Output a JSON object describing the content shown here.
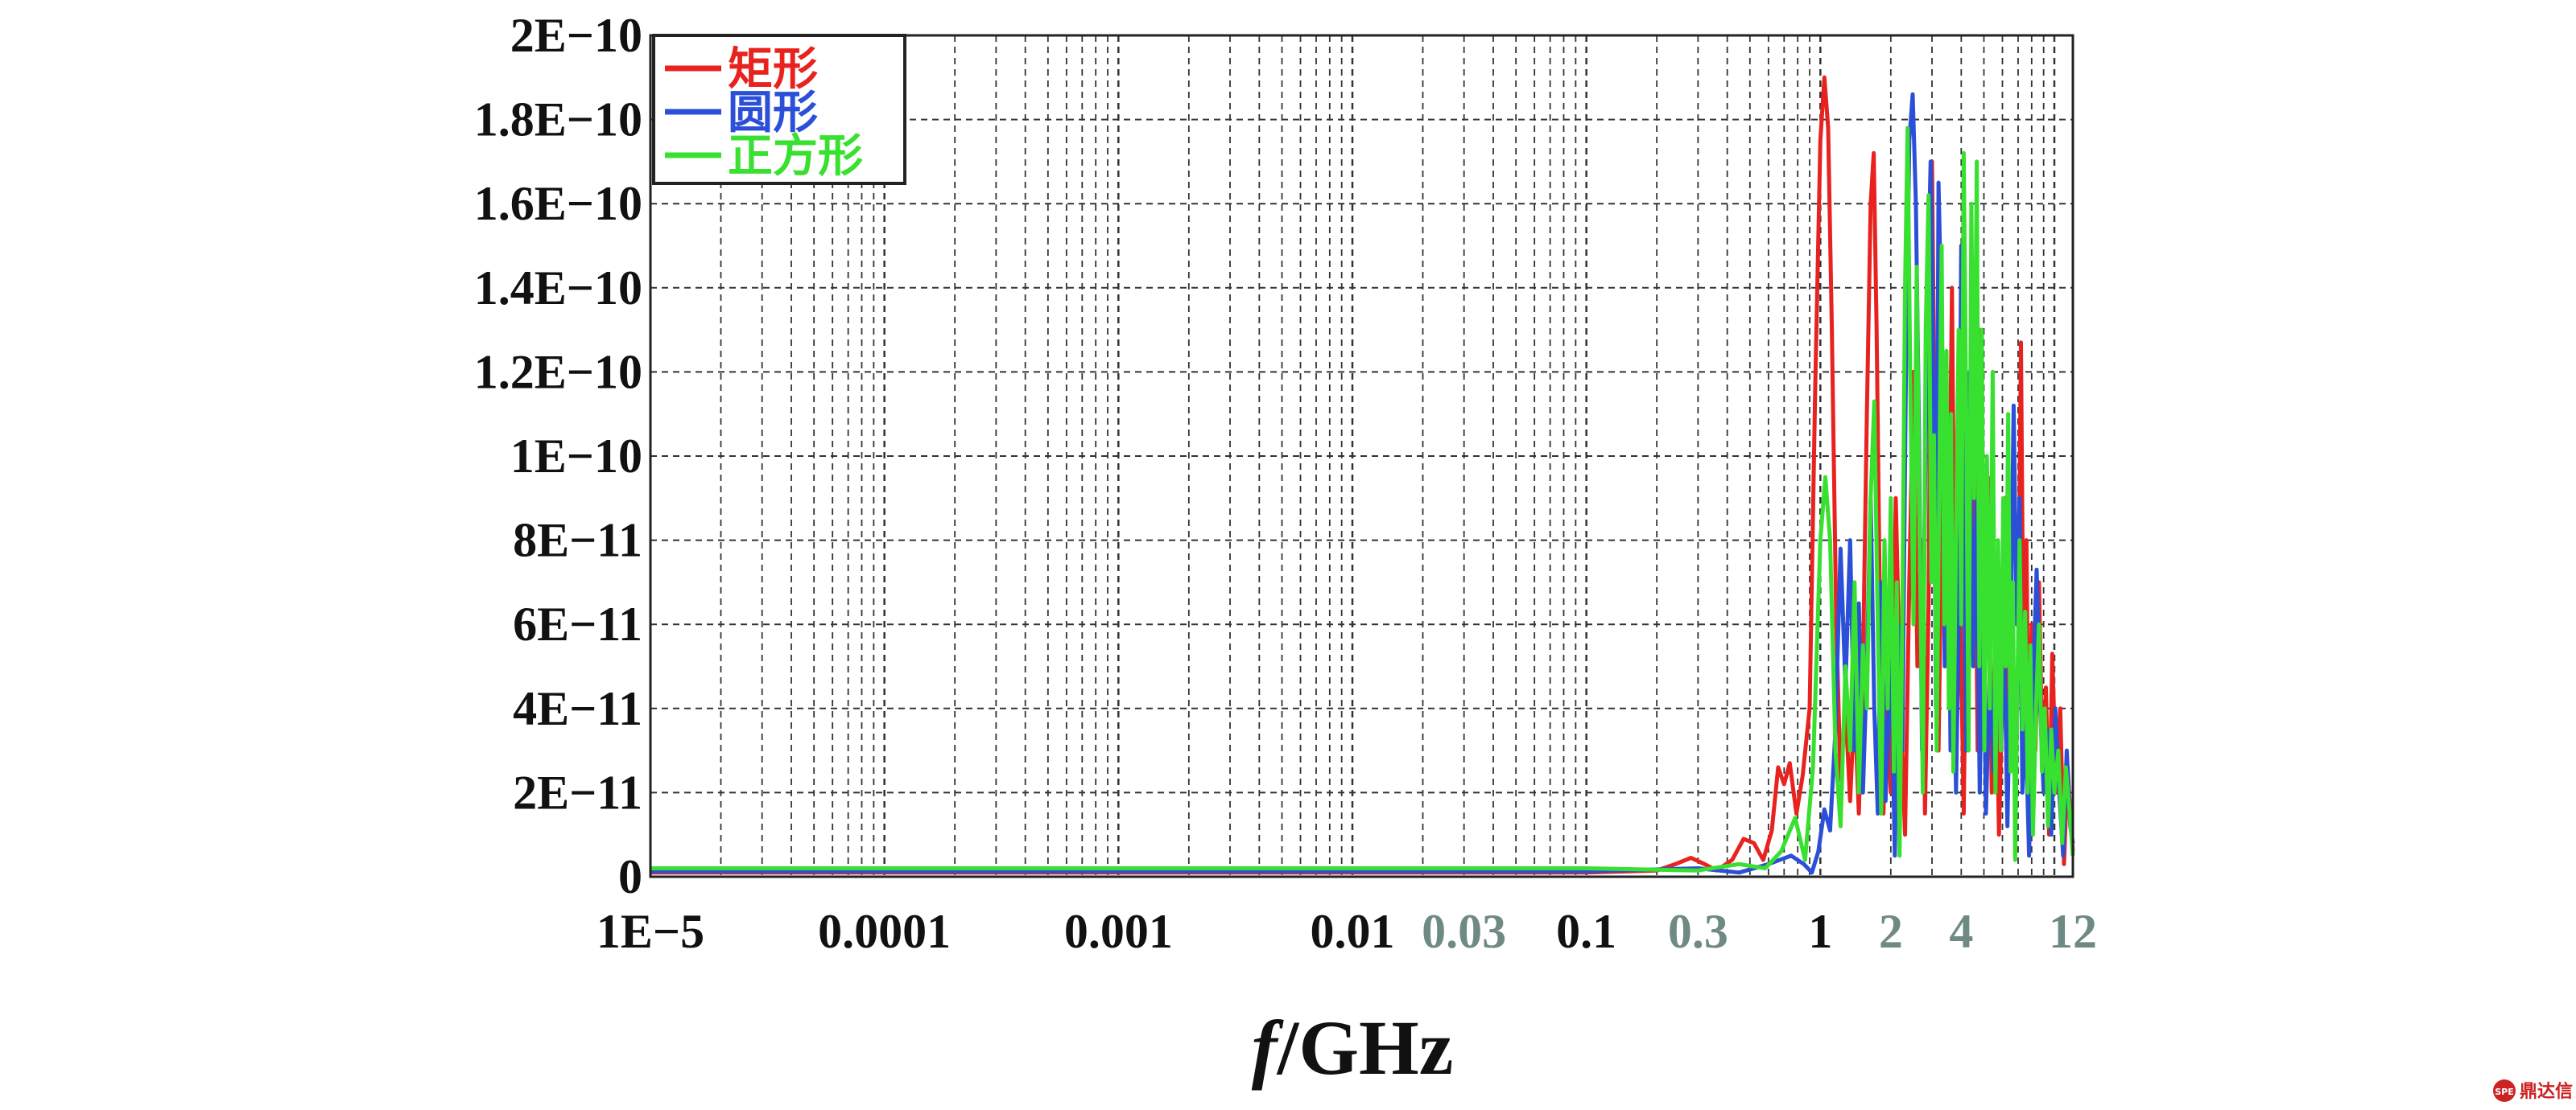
{
  "chart_data": {
    "type": "line",
    "title": "",
    "xlabel_italic": "f",
    "xlabel_rest": "/GHz",
    "ylabel": "",
    "x_scale": "log",
    "xlim": [
      1e-05,
      12
    ],
    "ylim": [
      0,
      2e-10
    ],
    "grid": true,
    "legend_position": "top-left",
    "y_ticks": [
      {
        "value": 0,
        "label": "0"
      },
      {
        "value": 2e-11,
        "label": "2E−11"
      },
      {
        "value": 4e-11,
        "label": "4E−11"
      },
      {
        "value": 6e-11,
        "label": "6E−11"
      },
      {
        "value": 8e-11,
        "label": "8E−11"
      },
      {
        "value": 1e-10,
        "label": "1E−10"
      },
      {
        "value": 1.2e-10,
        "label": "1.2E−10"
      },
      {
        "value": 1.4e-10,
        "label": "1.4E−10"
      },
      {
        "value": 1.6e-10,
        "label": "1.6E−10"
      },
      {
        "value": 1.8e-10,
        "label": "1.8E−10"
      },
      {
        "value": 2e-10,
        "label": "2E−10"
      }
    ],
    "x_ticks": [
      {
        "value": 1e-05,
        "label": "1E−5",
        "color": "#111111"
      },
      {
        "value": 0.0001,
        "label": "0.0001",
        "color": "#111111"
      },
      {
        "value": 0.001,
        "label": "0.001",
        "color": "#111111"
      },
      {
        "value": 0.01,
        "label": "0.01",
        "color": "#111111"
      },
      {
        "value": 0.03,
        "label": "0.03",
        "color": "#6f8a84"
      },
      {
        "value": 0.1,
        "label": "0.1",
        "color": "#111111"
      },
      {
        "value": 0.3,
        "label": "0.3",
        "color": "#6f8a84"
      },
      {
        "value": 1,
        "label": "1",
        "color": "#111111"
      },
      {
        "value": 2,
        "label": "2",
        "color": "#6f8a84"
      },
      {
        "value": 4,
        "label": "4",
        "color": "#6f8a84"
      },
      {
        "value": 12,
        "label": "12",
        "color": "#6f8a84"
      }
    ],
    "series": [
      {
        "name": "矩形",
        "color": "#e8231f",
        "points": [
          [
            1e-05,
            1e-12
          ],
          [
            0.0001,
            1e-12
          ],
          [
            0.001,
            1e-12
          ],
          [
            0.01,
            1e-12
          ],
          [
            0.1,
            1e-12
          ],
          [
            0.2,
            1.5e-12
          ],
          [
            0.24,
            3e-12
          ],
          [
            0.28,
            4.5e-12
          ],
          [
            0.32,
            3e-12
          ],
          [
            0.36,
            1.5e-12
          ],
          [
            0.42,
            4e-12
          ],
          [
            0.47,
            9e-12
          ],
          [
            0.52,
            8e-12
          ],
          [
            0.57,
            4e-12
          ],
          [
            0.62,
            1.1e-11
          ],
          [
            0.66,
            2.6e-11
          ],
          [
            0.7,
            2.2e-11
          ],
          [
            0.74,
            2.7e-11
          ],
          [
            0.79,
            1.5e-11
          ],
          [
            0.84,
            2.4e-11
          ],
          [
            0.9,
            4e-11
          ],
          [
            0.95,
            1.15e-10
          ],
          [
            1.0,
            1.75e-10
          ],
          [
            1.04,
            1.9e-10
          ],
          [
            1.08,
            1.78e-10
          ],
          [
            1.12,
            1.3e-10
          ],
          [
            1.17,
            6e-11
          ],
          [
            1.22,
            2.3e-11
          ],
          [
            1.28,
            4e-11
          ],
          [
            1.34,
            1.8e-11
          ],
          [
            1.4,
            4.2e-11
          ],
          [
            1.46,
            1.5e-11
          ],
          [
            1.52,
            5e-11
          ],
          [
            1.58,
            1.1e-10
          ],
          [
            1.64,
            1.6e-10
          ],
          [
            1.69,
            1.72e-10
          ],
          [
            1.74,
            1.3e-10
          ],
          [
            1.8,
            6e-11
          ],
          [
            1.86,
            1.5e-11
          ],
          [
            1.92,
            4.5e-11
          ],
          [
            2.0,
            2e-11
          ],
          [
            2.1,
            9e-11
          ],
          [
            2.2,
            4e-11
          ],
          [
            2.3,
            1e-11
          ],
          [
            2.4,
            7e-11
          ],
          [
            2.5,
            1.2e-10
          ],
          [
            2.6,
            5e-11
          ],
          [
            2.7,
            8e-11
          ],
          [
            2.8,
            1.5e-11
          ],
          [
            2.9,
            6.5e-11
          ],
          [
            3.0,
            1.7e-10
          ],
          [
            3.1,
            9e-11
          ],
          [
            3.2,
            3e-11
          ],
          [
            3.35,
            1.1e-10
          ],
          [
            3.5,
            5e-11
          ],
          [
            3.65,
            1.4e-10
          ],
          [
            3.8,
            2.5e-11
          ],
          [
            3.95,
            7e-11
          ],
          [
            4.1,
            1.5e-11
          ],
          [
            4.25,
            9e-11
          ],
          [
            4.4,
            6e-11
          ],
          [
            4.55,
            1.1e-10
          ],
          [
            4.7,
            3e-11
          ],
          [
            4.85,
            1.3e-10
          ],
          [
            5.0,
            4e-11
          ],
          [
            5.2,
            9.5e-11
          ],
          [
            5.4,
            2e-11
          ],
          [
            5.6,
            6e-11
          ],
          [
            5.8,
            1e-11
          ],
          [
            6.0,
            4.5e-11
          ],
          [
            6.2,
            9e-11
          ],
          [
            6.4,
            3e-11
          ],
          [
            6.6,
            6e-11
          ],
          [
            6.8,
            2e-11
          ],
          [
            7.0,
            5e-11
          ],
          [
            7.2,
            1.27e-10
          ],
          [
            7.4,
            4e-11
          ],
          [
            7.6,
            8e-11
          ],
          [
            7.8,
            1.5e-11
          ],
          [
            8.0,
            6e-11
          ],
          [
            8.3,
            3e-11
          ],
          [
            8.6,
            7e-11
          ],
          [
            8.9,
            2.5e-11
          ],
          [
            9.2,
            4.5e-11
          ],
          [
            9.5,
            1e-11
          ],
          [
            9.8,
            5.3e-11
          ],
          [
            10.2,
            2e-11
          ],
          [
            10.6,
            4e-11
          ],
          [
            11.0,
            3e-12
          ],
          [
            11.4,
            2.6e-11
          ],
          [
            11.7,
            1.5e-11
          ],
          [
            12.0,
            6e-12
          ]
        ]
      },
      {
        "name": "圆形",
        "color": "#2b4fd8",
        "points": [
          [
            1e-05,
            1.3e-12
          ],
          [
            0.0001,
            1.3e-12
          ],
          [
            0.001,
            1.3e-12
          ],
          [
            0.01,
            1.3e-12
          ],
          [
            0.1,
            1.3e-12
          ],
          [
            0.3,
            2e-12
          ],
          [
            0.45,
            1e-12
          ],
          [
            0.6,
            3e-12
          ],
          [
            0.75,
            5e-12
          ],
          [
            0.85,
            3e-12
          ],
          [
            0.92,
            1e-12
          ],
          [
            0.98,
            6e-12
          ],
          [
            1.04,
            1.6e-11
          ],
          [
            1.1,
            1.1e-11
          ],
          [
            1.16,
            3.5e-11
          ],
          [
            1.22,
            7.8e-11
          ],
          [
            1.28,
            4.5e-11
          ],
          [
            1.34,
            8e-11
          ],
          [
            1.4,
            3e-11
          ],
          [
            1.46,
            6.5e-11
          ],
          [
            1.52,
            2e-11
          ],
          [
            1.58,
            5e-11
          ],
          [
            1.64,
            9e-11
          ],
          [
            1.7,
            4e-11
          ],
          [
            1.76,
            1.5e-11
          ],
          [
            1.82,
            7e-11
          ],
          [
            1.9,
            1.8e-11
          ],
          [
            2.0,
            5.5e-11
          ],
          [
            2.08,
            5e-12
          ],
          [
            2.16,
            6e-11
          ],
          [
            2.24,
            3e-11
          ],
          [
            2.32,
            1.2e-10
          ],
          [
            2.4,
            1.75e-10
          ],
          [
            2.48,
            1.86e-10
          ],
          [
            2.56,
            1.6e-10
          ],
          [
            2.64,
            1.05e-10
          ],
          [
            2.72,
            3e-11
          ],
          [
            2.8,
            9e-11
          ],
          [
            2.88,
            1.4e-10
          ],
          [
            2.96,
            1.7e-10
          ],
          [
            3.04,
            1.2e-10
          ],
          [
            3.12,
            4e-11
          ],
          [
            3.2,
            1.65e-10
          ],
          [
            3.3,
            1.3e-10
          ],
          [
            3.4,
            5e-11
          ],
          [
            3.5,
            1.1e-10
          ],
          [
            3.6,
            3e-11
          ],
          [
            3.7,
            8e-11
          ],
          [
            3.8,
            2e-11
          ],
          [
            3.9,
            6e-11
          ],
          [
            4.0,
            1.5e-10
          ],
          [
            4.1,
            8e-11
          ],
          [
            4.2,
            3e-11
          ],
          [
            4.35,
            1.2e-10
          ],
          [
            4.5,
            5e-11
          ],
          [
            4.65,
            9e-11
          ],
          [
            4.8,
            2e-11
          ],
          [
            4.95,
            7e-11
          ],
          [
            5.1,
            1.5e-11
          ],
          [
            5.3,
            5e-11
          ],
          [
            5.5,
            2.5e-11
          ],
          [
            5.7,
            7.5e-11
          ],
          [
            5.9,
            3e-11
          ],
          [
            6.1,
            6e-11
          ],
          [
            6.3,
            1.2e-11
          ],
          [
            6.5,
            5.5e-11
          ],
          [
            6.7,
            1.12e-10
          ],
          [
            6.9,
            6e-11
          ],
          [
            7.1,
            9e-11
          ],
          [
            7.3,
            2e-11
          ],
          [
            7.5,
            4e-11
          ],
          [
            7.8,
            5e-12
          ],
          [
            8.1,
            4.5e-11
          ],
          [
            8.4,
            7.3e-11
          ],
          [
            8.7,
            4e-11
          ],
          [
            9.0,
            2e-11
          ],
          [
            9.3,
            3.5e-11
          ],
          [
            9.7,
            1e-11
          ],
          [
            10.1,
            4e-11
          ],
          [
            10.5,
            2e-11
          ],
          [
            10.9,
            5e-12
          ],
          [
            11.3,
            3e-11
          ],
          [
            11.7,
            1.2e-11
          ],
          [
            12.0,
            8e-12
          ]
        ]
      },
      {
        "name": "正方形",
        "color": "#38e030",
        "points": [
          [
            1e-05,
            2e-12
          ],
          [
            0.0001,
            2e-12
          ],
          [
            0.001,
            2e-12
          ],
          [
            0.01,
            2e-12
          ],
          [
            0.1,
            2e-12
          ],
          [
            0.3,
            1.5e-12
          ],
          [
            0.45,
            3e-12
          ],
          [
            0.58,
            2e-12
          ],
          [
            0.68,
            6e-12
          ],
          [
            0.78,
            1.4e-11
          ],
          [
            0.86,
            4e-12
          ],
          [
            0.93,
            2.6e-11
          ],
          [
            1.0,
            8e-11
          ],
          [
            1.05,
            9.5e-11
          ],
          [
            1.1,
            8e-11
          ],
          [
            1.16,
            3e-11
          ],
          [
            1.22,
            1.2e-11
          ],
          [
            1.28,
            5e-11
          ],
          [
            1.34,
            3e-11
          ],
          [
            1.4,
            7e-11
          ],
          [
            1.46,
            2e-11
          ],
          [
            1.52,
            5.5e-11
          ],
          [
            1.58,
            4e-11
          ],
          [
            1.64,
            9e-11
          ],
          [
            1.7,
            1.13e-10
          ],
          [
            1.76,
            6e-11
          ],
          [
            1.82,
            1.5e-11
          ],
          [
            1.88,
            8e-11
          ],
          [
            1.94,
            4e-11
          ],
          [
            2.0,
            9e-11
          ],
          [
            2.06,
            2.5e-11
          ],
          [
            2.12,
            7e-11
          ],
          [
            2.18,
            5e-12
          ],
          [
            2.24,
            6e-11
          ],
          [
            2.3,
            1.4e-10
          ],
          [
            2.36,
            1.78e-10
          ],
          [
            2.42,
            1.2e-10
          ],
          [
            2.5,
            6e-11
          ],
          [
            2.58,
            1.45e-10
          ],
          [
            2.66,
            8e-11
          ],
          [
            2.74,
            2e-11
          ],
          [
            2.82,
            1.3e-10
          ],
          [
            2.9,
            1.62e-10
          ],
          [
            2.98,
            7e-11
          ],
          [
            3.06,
            1.05e-10
          ],
          [
            3.14,
            3e-11
          ],
          [
            3.22,
            9e-11
          ],
          [
            3.3,
            1.5e-10
          ],
          [
            3.38,
            6e-11
          ],
          [
            3.46,
            1.25e-10
          ],
          [
            3.54,
            4e-11
          ],
          [
            3.62,
            1.1e-10
          ],
          [
            3.7,
            2.5e-11
          ],
          [
            3.8,
            8e-11
          ],
          [
            3.9,
            1.3e-10
          ],
          [
            4.0,
            6e-11
          ],
          [
            4.1,
            1.72e-10
          ],
          [
            4.2,
            1.1e-10
          ],
          [
            4.3,
            3e-11
          ],
          [
            4.42,
            1.6e-10
          ],
          [
            4.54,
            9e-11
          ],
          [
            4.66,
            1.7e-10
          ],
          [
            4.78,
            5e-11
          ],
          [
            4.9,
            1.3e-10
          ],
          [
            5.02,
            3e-11
          ],
          [
            5.15,
            1e-10
          ],
          [
            5.3,
            4e-11
          ],
          [
            5.45,
            1.2e-10
          ],
          [
            5.6,
            2e-11
          ],
          [
            5.75,
            8e-11
          ],
          [
            5.9,
            3e-11
          ],
          [
            6.05,
            9e-11
          ],
          [
            6.2,
            5e-11
          ],
          [
            6.35,
            1.1e-10
          ],
          [
            6.5,
            2.5e-11
          ],
          [
            6.65,
            7e-11
          ],
          [
            6.8,
            4e-12
          ],
          [
            6.95,
            4.5e-11
          ],
          [
            7.1,
            8e-11
          ],
          [
            7.3,
            3.5e-11
          ],
          [
            7.5,
            6.3e-11
          ],
          [
            7.7,
            2e-11
          ],
          [
            7.9,
            5.5e-11
          ],
          [
            8.1,
            1e-11
          ],
          [
            8.35,
            4e-11
          ],
          [
            8.6,
            6e-11
          ],
          [
            8.85,
            2.5e-11
          ],
          [
            9.1,
            4e-11
          ],
          [
            9.4,
            1.2e-11
          ],
          [
            9.7,
            3.5e-11
          ],
          [
            10.0,
            2e-11
          ],
          [
            10.4,
            3e-11
          ],
          [
            10.8,
            8e-12
          ],
          [
            11.2,
            2.6e-11
          ],
          [
            11.6,
            1.6e-11
          ],
          [
            12.0,
            5e-12
          ]
        ]
      }
    ]
  },
  "watermark": {
    "badge": "SPE",
    "text": "鼎达信"
  }
}
